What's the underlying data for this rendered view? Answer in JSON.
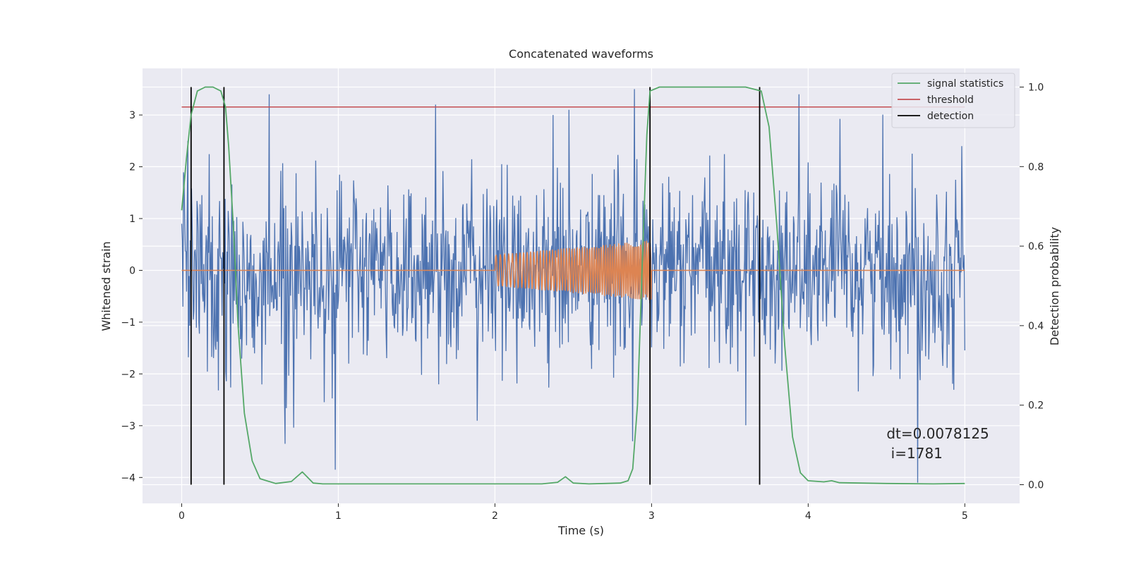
{
  "chart_data": {
    "type": "line",
    "title": "Concatenated waveforms",
    "xlabel": "Time (s)",
    "ylabel": "Whitened strain",
    "y2label": "Detection probability",
    "xlim": [
      -0.25,
      5.35
    ],
    "ylim": [
      -4.5,
      3.9
    ],
    "y2lim": [
      -0.047,
      1.047
    ],
    "xticks": [
      0,
      1,
      2,
      3,
      4,
      5
    ],
    "yticks": [
      -4,
      -3,
      -2,
      -1,
      0,
      1,
      2,
      3
    ],
    "y2ticks": [
      0.0,
      0.2,
      0.4,
      0.6,
      0.8,
      1.0
    ],
    "xtick_labels": [
      "0",
      "1",
      "2",
      "3",
      "4",
      "5"
    ],
    "ytick_labels": [
      "−4",
      "−3",
      "−2",
      "−1",
      "0",
      "1",
      "2",
      "3"
    ],
    "y2tick_labels": [
      "0.0",
      "0.2",
      "0.4",
      "0.6",
      "0.8",
      "1.0"
    ],
    "grid": true,
    "legend_position": "top-right",
    "legend": [
      {
        "label": "signal statistics",
        "color": "#55a868"
      },
      {
        "label": "threshold",
        "color": "#c44e52"
      },
      {
        "label": "detection",
        "color": "#000000"
      }
    ],
    "colors": {
      "strain": "#4c72b0",
      "template": "#dd8452",
      "signal_statistics": "#55a868",
      "threshold": "#c44e52",
      "detection": "#000000",
      "plot_background": "#eaeaf2",
      "grid": "#ffffff"
    },
    "series": [
      {
        "axis": "left",
        "color": "#4c72b0",
        "sample_interval": 0.0078125,
        "x_range": [
          0,
          5
        ],
        "approx_std": 0.9,
        "notable_points": [
          {
            "x": 0.0,
            "y": 0.9
          },
          {
            "x": 0.04,
            "y": 2.5
          },
          {
            "x": 0.56,
            "y": 3.4
          },
          {
            "x": 0.66,
            "y": -3.35
          },
          {
            "x": 0.98,
            "y": -3.85
          },
          {
            "x": 1.62,
            "y": 3.2
          },
          {
            "x": 2.37,
            "y": 3.0
          },
          {
            "x": 2.89,
            "y": 3.5
          },
          {
            "x": 2.88,
            "y": -3.3
          },
          {
            "x": 3.94,
            "y": 3.4
          },
          {
            "x": 4.7,
            "y": -4.1
          },
          {
            "x": 4.98,
            "y": 2.4
          }
        ]
      },
      {
        "axis": "left",
        "color": "#dd8452",
        "description_values": {
          "start_x": 2.0,
          "end_x": 3.0,
          "start_amplitude": 0.3,
          "end_amplitude": 0.58,
          "baseline": 0.0
        },
        "x": [
          0,
          2.0,
          2.5,
          3.0,
          5.0
        ],
        "amplitude": [
          0,
          0.3,
          0.42,
          0.58,
          0
        ]
      },
      {
        "axis": "right",
        "name": "signal statistics",
        "color": "#55a868",
        "x": [
          0.0,
          0.03,
          0.06,
          0.1,
          0.15,
          0.2,
          0.25,
          0.28,
          0.3,
          0.33,
          0.36,
          0.4,
          0.45,
          0.5,
          0.6,
          0.7,
          0.77,
          0.84,
          0.9,
          1.2,
          1.6,
          2.0,
          2.3,
          2.4,
          2.45,
          2.5,
          2.6,
          2.7,
          2.8,
          2.85,
          2.88,
          2.91,
          2.94,
          2.97,
          2.99,
          3.05,
          3.3,
          3.6,
          3.7,
          3.75,
          3.8,
          3.85,
          3.9,
          3.95,
          4.0,
          4.1,
          4.15,
          4.2,
          4.5,
          4.8,
          5.0
        ],
        "y": [
          0.69,
          0.82,
          0.93,
          0.99,
          1.0,
          1.0,
          0.99,
          0.95,
          0.85,
          0.65,
          0.4,
          0.18,
          0.06,
          0.015,
          0.003,
          0.008,
          0.032,
          0.004,
          0.002,
          0.002,
          0.002,
          0.002,
          0.002,
          0.006,
          0.02,
          0.004,
          0.002,
          0.003,
          0.004,
          0.01,
          0.04,
          0.2,
          0.55,
          0.88,
          0.99,
          1.0,
          1.0,
          1.0,
          0.99,
          0.9,
          0.65,
          0.35,
          0.12,
          0.03,
          0.01,
          0.007,
          0.01,
          0.005,
          0.003,
          0.002,
          0.003
        ]
      },
      {
        "axis": "right",
        "name": "threshold",
        "color": "#c44e52",
        "x": [
          0,
          5
        ],
        "y": [
          0.95,
          0.95
        ]
      },
      {
        "axis": "right",
        "name": "detection",
        "color": "#000000",
        "vertical_lines_x": [
          0.06,
          0.27,
          2.99,
          3.69
        ],
        "y_range": [
          0,
          1
        ]
      }
    ],
    "annotations": [
      {
        "text": "dt=0.0078125",
        "x": 4.5,
        "y": -3.25
      },
      {
        "text": " i=1781",
        "x": 4.5,
        "y": -3.63
      }
    ]
  }
}
